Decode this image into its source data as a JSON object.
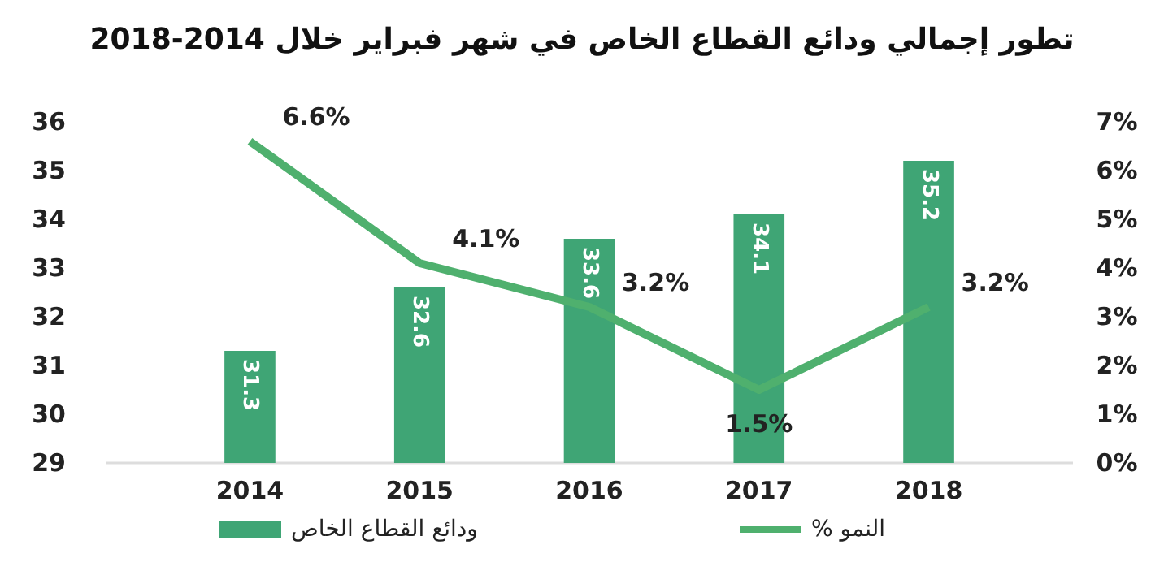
{
  "chart_data": {
    "type": "bar",
    "title": "تطور إجمالي ودائع القطاع الخاص في شهر فبراير خلال 2014-2018",
    "categories": [
      "2014",
      "2015",
      "2016",
      "2017",
      "2018"
    ],
    "series": [
      {
        "name": "ودائع القطاع الخاص",
        "color": "#3fa575",
        "values": [
          31.3,
          32.6,
          33.6,
          34.1,
          35.2
        ],
        "value_labels": [
          "31.3",
          "32.6",
          "33.6",
          "34.1",
          "35.2"
        ]
      },
      {
        "name": "% النمو",
        "type": "line",
        "axis": "y2",
        "color": "#4fb06e",
        "values": [
          6.6,
          4.1,
          3.2,
          1.5,
          3.2
        ],
        "value_labels": [
          "6.6%",
          "4.1%",
          "3.2%",
          "1.5%",
          "3.2%"
        ]
      }
    ],
    "ylim": [
      29,
      36
    ],
    "yticks": [
      29,
      30,
      31,
      32,
      33,
      34,
      35,
      36
    ],
    "y2lim": [
      0,
      7
    ],
    "y2ticks": [
      {
        "value": 0,
        "label": "0%"
      },
      {
        "value": 1,
        "label": "1%"
      },
      {
        "value": 2,
        "label": "2%"
      },
      {
        "value": 3,
        "label": "3%"
      },
      {
        "value": 4,
        "label": "4%"
      },
      {
        "value": 5,
        "label": "5%"
      },
      {
        "value": 6,
        "label": "6%"
      },
      {
        "value": 7,
        "label": "7%"
      }
    ],
    "legend": "bottom",
    "grid": false,
    "marker": "none",
    "line_style": "solid"
  }
}
